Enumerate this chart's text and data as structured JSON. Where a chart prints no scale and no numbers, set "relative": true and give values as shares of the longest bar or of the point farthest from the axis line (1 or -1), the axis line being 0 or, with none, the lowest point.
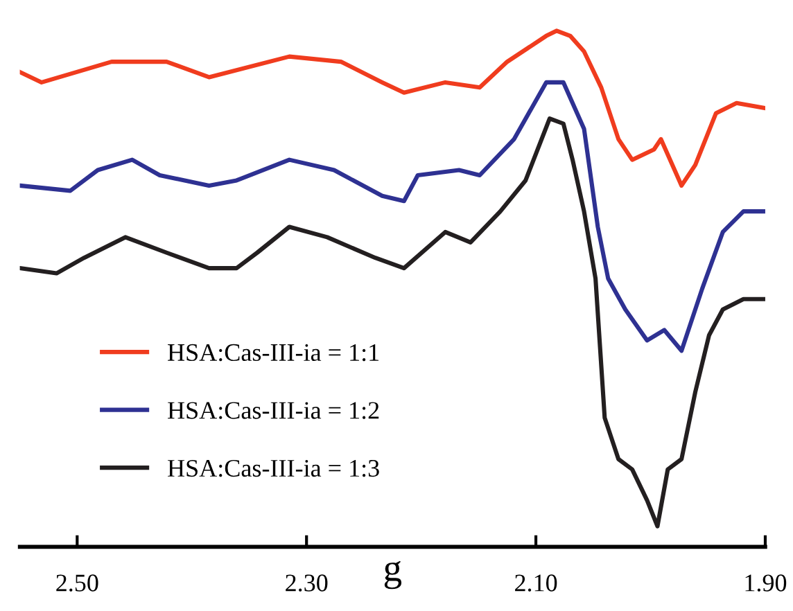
{
  "chart_data": {
    "type": "line",
    "relative": true,
    "xlabel": "g",
    "xlim": [
      2.55,
      1.9
    ],
    "xticks": [
      {
        "value": 2.5,
        "label": "2.50"
      },
      {
        "value": 2.3,
        "label": "2.30"
      },
      {
        "value": 2.1,
        "label": "2.10"
      },
      {
        "value": 1.9,
        "label": "1.90"
      }
    ],
    "grid": false,
    "legend": "lower left",
    "line_style": "solid",
    "marker": "none",
    "tick_labels": "x",
    "series": [
      {
        "name": "HSA:Cas-III-ia = 1:1",
        "color": "#f03c1e",
        "x": [
          2.55,
          2.531,
          2.47,
          2.422,
          2.385,
          2.315,
          2.27,
          2.234,
          2.215,
          2.179,
          2.149,
          2.125,
          2.091,
          2.082,
          2.07,
          2.058,
          2.043,
          2.028,
          2.016,
          1.997,
          1.991,
          1.973,
          1.961,
          1.943,
          1.925,
          1.9
        ],
        "values": [
          0.92,
          0.9,
          0.94,
          0.94,
          0.91,
          0.95,
          0.94,
          0.9,
          0.88,
          0.9,
          0.89,
          0.94,
          0.99,
          1.0,
          0.99,
          0.96,
          0.89,
          0.79,
          0.75,
          0.77,
          0.79,
          0.7,
          0.74,
          0.84,
          0.86,
          0.85
        ]
      },
      {
        "name": "HSA:Cas-III-ia = 1:2",
        "color": "#2e3192",
        "x": [
          2.55,
          2.506,
          2.482,
          2.452,
          2.428,
          2.385,
          2.361,
          2.315,
          2.276,
          2.234,
          2.215,
          2.203,
          2.167,
          2.149,
          2.119,
          2.091,
          2.076,
          2.058,
          2.046,
          2.037,
          2.022,
          2.003,
          1.988,
          1.973,
          1.955,
          1.937,
          1.919,
          1.9
        ],
        "values": [
          0.7,
          0.69,
          0.73,
          0.75,
          0.72,
          0.7,
          0.71,
          0.75,
          0.73,
          0.68,
          0.67,
          0.72,
          0.73,
          0.72,
          0.79,
          0.9,
          0.9,
          0.81,
          0.62,
          0.52,
          0.46,
          0.4,
          0.42,
          0.38,
          0.5,
          0.61,
          0.65,
          0.65
        ]
      },
      {
        "name": "HSA:Cas-III-ia = 1:3",
        "color": "#231f20",
        "x": [
          2.55,
          2.518,
          2.494,
          2.458,
          2.422,
          2.385,
          2.361,
          2.343,
          2.315,
          2.282,
          2.24,
          2.215,
          2.179,
          2.157,
          2.131,
          2.109,
          2.088,
          2.076,
          2.068,
          2.058,
          2.048,
          2.04,
          2.028,
          2.016,
          2.003,
          1.994,
          1.985,
          1.973,
          1.961,
          1.949,
          1.937,
          1.919,
          1.9
        ],
        "values": [
          0.54,
          0.53,
          0.56,
          0.6,
          0.57,
          0.54,
          0.54,
          0.57,
          0.62,
          0.6,
          0.56,
          0.54,
          0.61,
          0.59,
          0.65,
          0.71,
          0.83,
          0.82,
          0.75,
          0.65,
          0.52,
          0.25,
          0.17,
          0.15,
          0.09,
          0.04,
          0.15,
          0.17,
          0.3,
          0.41,
          0.46,
          0.48,
          0.48
        ]
      }
    ]
  }
}
